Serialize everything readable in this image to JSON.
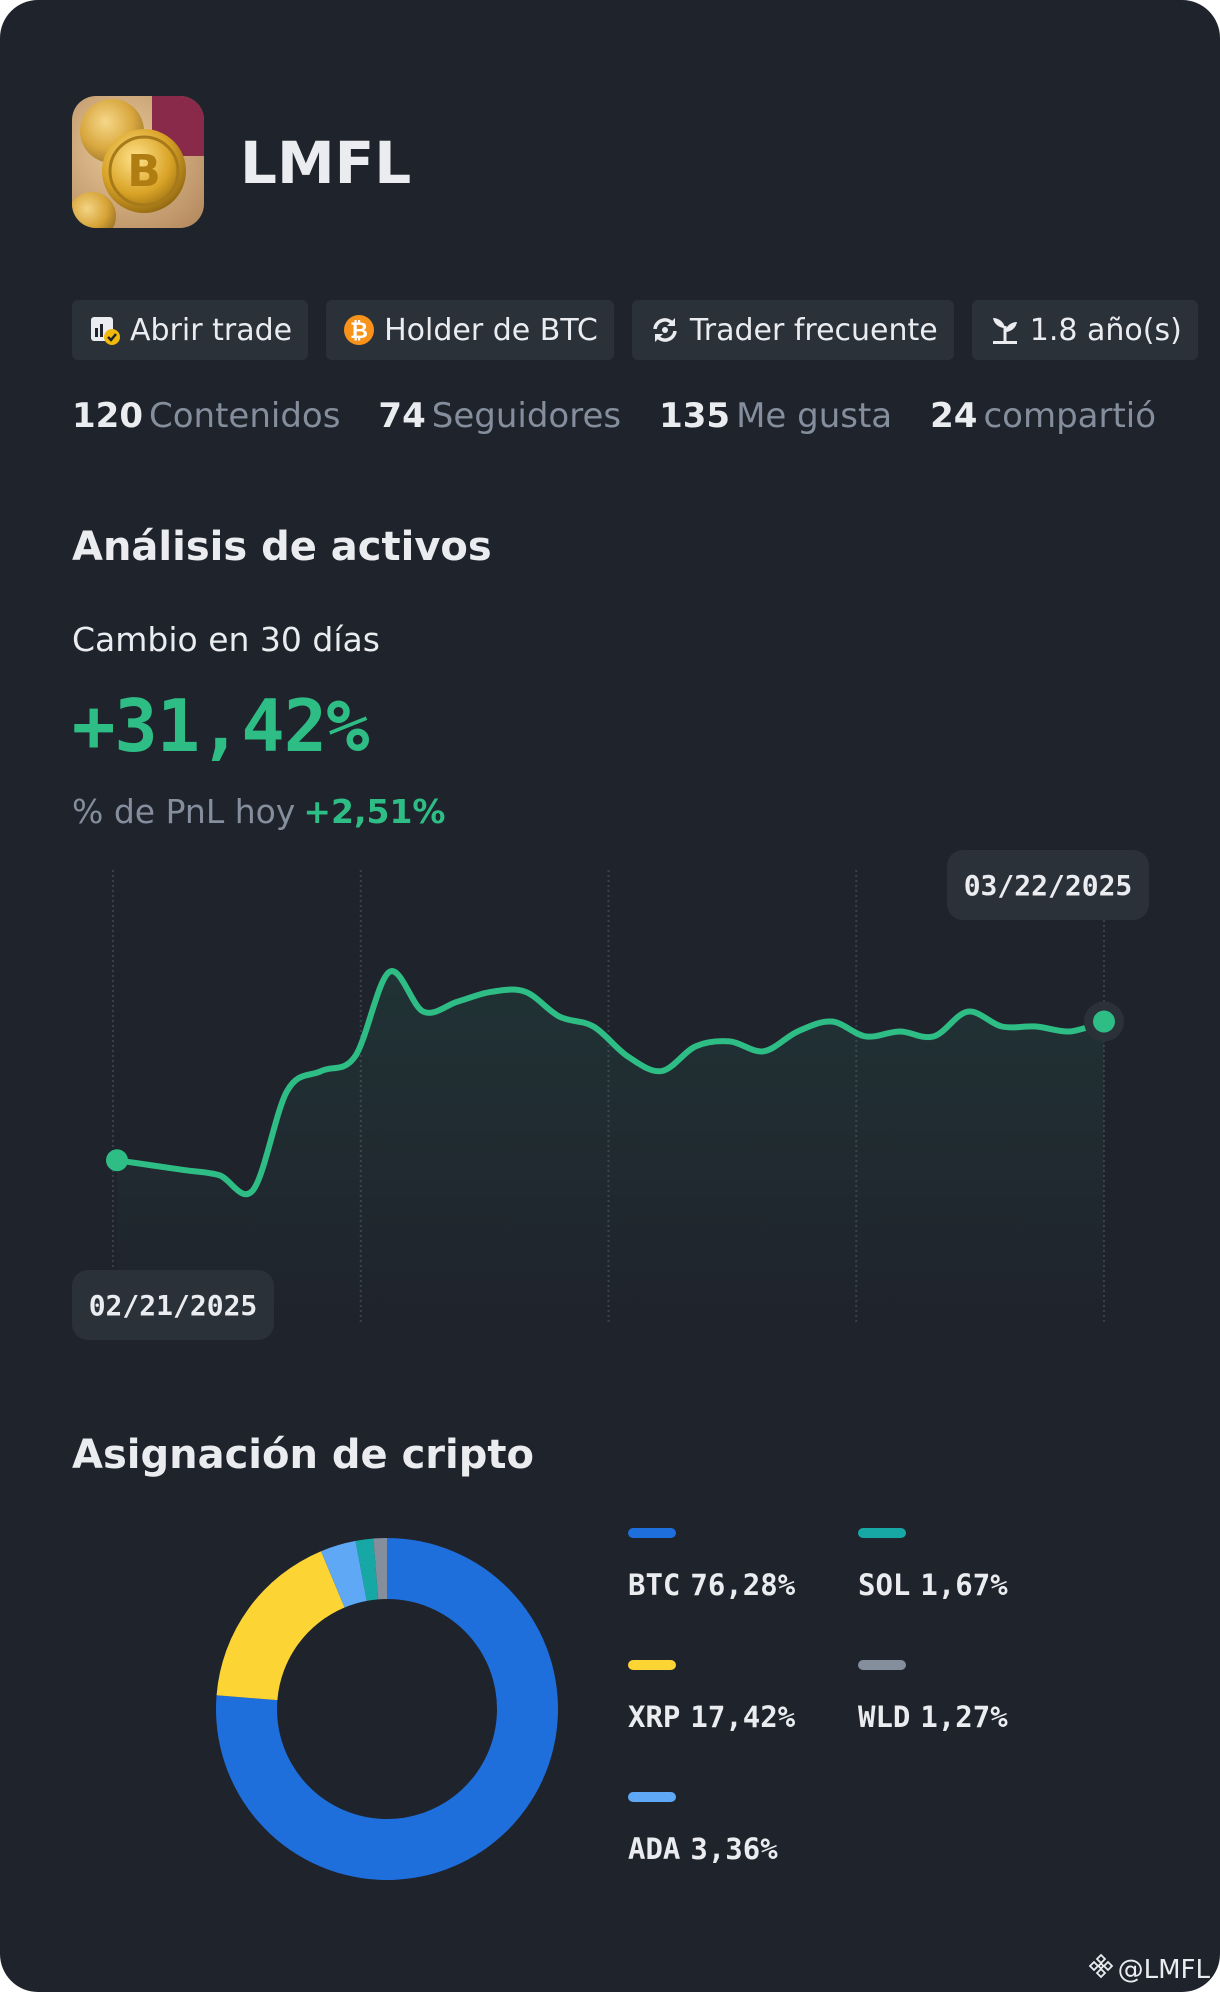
{
  "profile": {
    "username": "LMFL",
    "badges": [
      {
        "label": "Abrir trade",
        "icon": "chart-check-icon"
      },
      {
        "label": "Holder de BTC",
        "icon": "bitcoin-icon"
      },
      {
        "label": "Trader frecuente",
        "icon": "refresh-icon"
      },
      {
        "label": "1.8 año(s)",
        "icon": "sprout-icon"
      }
    ],
    "stats": [
      {
        "value": "120",
        "label": "Contenidos"
      },
      {
        "value": "74",
        "label": "Seguidores"
      },
      {
        "value": "135",
        "label": "Me gusta"
      },
      {
        "value": "24",
        "label": "compartió"
      }
    ]
  },
  "analysis": {
    "title": "Análisis de activos",
    "change_label": "Cambio en 30 días",
    "change_value": "+31,42%",
    "pnl_label": "% de PnL hoy",
    "pnl_value": "+2,51%",
    "start_date": "02/21/2025",
    "end_date": "03/22/2025"
  },
  "allocation": {
    "title": "Asignación de cripto"
  },
  "colors": {
    "positive": "#2ebd85",
    "btc": "#1e6fdb",
    "xrp": "#fcd535",
    "ada": "#5ea8f5",
    "sol": "#17a8a5",
    "wld": "#848e9c"
  },
  "chart_data": [
    {
      "type": "line",
      "x": [
        "02/21/2025",
        "02/22/2025",
        "02/23/2025",
        "02/24/2025",
        "02/25/2025",
        "02/26/2025",
        "02/27/2025",
        "02/28/2025",
        "03/01/2025",
        "03/02/2025",
        "03/03/2025",
        "03/04/2025",
        "03/05/2025",
        "03/06/2025",
        "03/07/2025",
        "03/08/2025",
        "03/09/2025",
        "03/10/2025",
        "03/11/2025",
        "03/12/2025",
        "03/13/2025",
        "03/14/2025",
        "03/15/2025",
        "03/16/2025",
        "03/17/2025",
        "03/18/2025",
        "03/19/2025",
        "03/20/2025",
        "03/21/2025",
        "03/22/2025"
      ],
      "values": [
        0,
        -1,
        -2,
        -3,
        -6,
        14,
        18,
        21,
        38,
        30,
        32,
        34,
        34,
        29,
        27,
        21,
        18,
        23,
        24,
        22,
        26,
        28,
        25,
        26,
        25,
        30,
        27,
        27,
        26,
        28
      ],
      "grid": true
    },
    {
      "type": "pie",
      "title": "Asignación de cripto",
      "categories": [
        "BTC",
        "XRP",
        "ADA",
        "SOL",
        "WLD"
      ],
      "values": [
        76.28,
        17.42,
        3.36,
        1.67,
        1.27
      ],
      "value_labels": [
        "76,28%",
        "17,42%",
        "3,36%",
        "1,67%",
        "1,27%"
      ],
      "colors": [
        "#1e6fdb",
        "#fcd535",
        "#5ea8f5",
        "#17a8a5",
        "#848e9c"
      ]
    }
  ],
  "watermark": "@LMFL"
}
